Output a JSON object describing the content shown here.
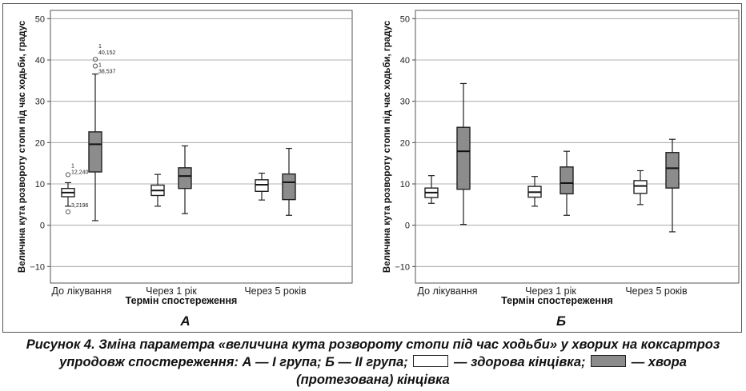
{
  "chart_data": [
    {
      "type": "box",
      "panel_label": "А",
      "ylabel": "Величина кута розвороту стопи під час ходьби, градус",
      "xlabel": "Термін спостереження",
      "ylim": [
        -14,
        52
      ],
      "yticks": [
        -10,
        0,
        10,
        20,
        30,
        40,
        50
      ],
      "categories": [
        "До лікування",
        "Через 1 рік",
        "Через 5 років"
      ],
      "grid": true,
      "series": [
        {
          "group": "healthy",
          "color": "#ffffff",
          "boxes": [
            {
              "category": "До лікування",
              "whisker_low": 4.6,
              "q1": 6.9,
              "median": 7.9,
              "q3": 8.9,
              "whisker_high": 10.3
            },
            {
              "category": "Через 1 рік",
              "whisker_low": 4.6,
              "q1": 7.2,
              "median": 8.4,
              "q3": 9.7,
              "whisker_high": 12.3
            },
            {
              "category": "Через 5 років",
              "whisker_low": 6.1,
              "q1": 8.2,
              "median": 9.8,
              "q3": 11.0,
              "whisker_high": 12.6
            }
          ],
          "outliers": [
            {
              "category": "До лікування",
              "value": 12.24,
              "labels": [
                "1",
                "12,240"
              ]
            },
            {
              "category": "До лікування",
              "value": 3.2196,
              "labels": [
                "3,2196"
              ]
            }
          ]
        },
        {
          "group": "sick",
          "color": "#8c8c8c",
          "boxes": [
            {
              "category": "До лікування",
              "whisker_low": 1.1,
              "q1": 12.9,
              "median": 19.6,
              "q3": 22.6,
              "whisker_high": 36.6
            },
            {
              "category": "Через 1 рік",
              "whisker_low": 2.8,
              "q1": 8.9,
              "median": 11.9,
              "q3": 13.9,
              "whisker_high": 19.2
            },
            {
              "category": "Через 5 років",
              "whisker_low": 2.4,
              "q1": 6.2,
              "median": 10.4,
              "q3": 12.4,
              "whisker_high": 18.6
            }
          ],
          "outliers": [
            {
              "category": "До лікування",
              "value": 40.152,
              "labels": [
                "1",
                "40,152"
              ]
            },
            {
              "category": "До лікування",
              "value": 38.537,
              "labels": [
                "1",
                "38,537"
              ]
            }
          ]
        }
      ]
    },
    {
      "type": "box",
      "panel_label": "Б",
      "ylabel": "Величина кута розвороту стопи під час ходьби, градус",
      "xlabel": "Термін спостереження",
      "ylim": [
        -14,
        52
      ],
      "yticks": [
        -10,
        0,
        10,
        20,
        30,
        40,
        50
      ],
      "categories": [
        "До лікування",
        "Через 1 рік",
        "Через 5 років"
      ],
      "grid": true,
      "series": [
        {
          "group": "healthy",
          "color": "#ffffff",
          "boxes": [
            {
              "category": "До лікування",
              "whisker_low": 5.3,
              "q1": 6.7,
              "median": 7.9,
              "q3": 9.0,
              "whisker_high": 12.0
            },
            {
              "category": "Через 1 рік",
              "whisker_low": 4.6,
              "q1": 6.8,
              "median": 8.0,
              "q3": 9.4,
              "whisker_high": 11.8
            },
            {
              "category": "Через 5 років",
              "whisker_low": 5.0,
              "q1": 7.7,
              "median": 9.5,
              "q3": 10.8,
              "whisker_high": 13.2
            }
          ],
          "outliers": []
        },
        {
          "group": "sick",
          "color": "#8c8c8c",
          "boxes": [
            {
              "category": "До лікування",
              "whisker_low": 0.2,
              "q1": 8.7,
              "median": 17.9,
              "q3": 23.7,
              "whisker_high": 34.3
            },
            {
              "category": "Через 1 рік",
              "whisker_low": 2.4,
              "q1": 7.6,
              "median": 10.2,
              "q3": 14.1,
              "whisker_high": 17.9
            },
            {
              "category": "Через 5 років",
              "whisker_low": -1.6,
              "q1": 9.0,
              "median": 13.8,
              "q3": 17.6,
              "whisker_high": 20.8
            }
          ],
          "outliers": []
        }
      ]
    }
  ],
  "caption": {
    "part1": "Рисунок 4. Зміна параметра «величина кута розвороту стопи під час ходьби» у хворих на коксартроз",
    "part2": "упродовж спостереження: А — І група; Б — ІІ група;",
    "healthy_label": "— здорова кінцівка;",
    "sick_label": "— хвора",
    "part3": "(протезована) кінцівка"
  }
}
